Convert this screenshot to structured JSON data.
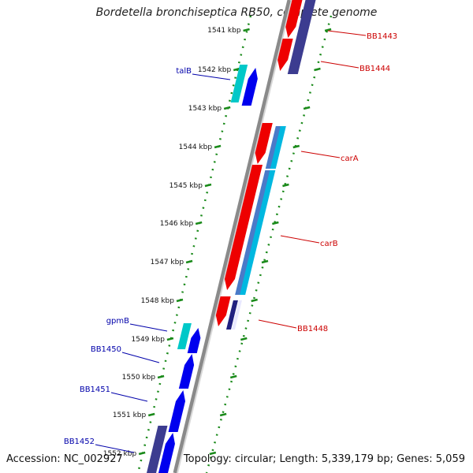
{
  "title": "Bordetella bronchiseptica RB50, complete genome",
  "accession": "Accession: NC_002927",
  "topology": "Topology: circular; Length: 5,339,179 bp; Genes: 5,059",
  "colors": {
    "backbone": "#8a8a8a",
    "forward_orf": "#0000ee",
    "forward_orf_alt": "#00c8c8",
    "reverse_orf": "#ee0000",
    "reverse_orf_alt": "#3c3c90",
    "cds_light": "#00b8e0",
    "forward_label": "#0000aa",
    "reverse_label": "#cc0000",
    "tick": "#1a8a1a"
  },
  "ticks": [
    {
      "label": "1541 kbp"
    },
    {
      "label": "1542 kbp"
    },
    {
      "label": "1543 kbp"
    },
    {
      "label": "1544 kbp"
    },
    {
      "label": "1545 kbp"
    },
    {
      "label": "1546 kbp"
    },
    {
      "label": "1547 kbp"
    },
    {
      "label": "1548 kbp"
    },
    {
      "label": "1549 kbp"
    },
    {
      "label": "1550 kbp"
    },
    {
      "label": "1551 kbp"
    },
    {
      "label": "1552 kbp"
    }
  ],
  "forward_labels": [
    {
      "name": "talB"
    },
    {
      "name": "gpmB"
    },
    {
      "name": "BB1450"
    },
    {
      "name": "BB1451"
    },
    {
      "name": "BB1452"
    }
  ],
  "reverse_labels": [
    {
      "name": "BB1443"
    },
    {
      "name": "BB1444"
    },
    {
      "name": "carA"
    },
    {
      "name": "carB"
    },
    {
      "name": "BB1448"
    }
  ]
}
